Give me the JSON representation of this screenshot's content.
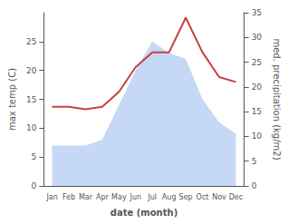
{
  "chart_data": {
    "type": "line",
    "xlabel": "date (month)",
    "ylabel": "max temp (C)",
    "y2label": "med. precipitation (kg/m2)",
    "categories": [
      "Jan",
      "Feb",
      "Mar",
      "Apr",
      "May",
      "Jun",
      "Jul",
      "Aug",
      "Sep",
      "Oct",
      "Nov",
      "Dec"
    ],
    "series": [
      {
        "type": "area",
        "color": "#c5d8f5",
        "values": [
          7,
          7,
          7,
          8,
          14,
          20,
          25,
          23,
          22,
          15,
          11,
          9
        ]
      },
      {
        "type": "line",
        "axis": "y2",
        "color": "#c9403a",
        "values": [
          16,
          16,
          15.5,
          16,
          19,
          24,
          27,
          27,
          34,
          27,
          22,
          21
        ]
      }
    ],
    "ylim": [
      0,
      30
    ],
    "yticks": [
      0,
      5,
      10,
      15,
      20,
      25
    ],
    "y2lim": [
      0,
      35
    ],
    "y2ticks": [
      0,
      5,
      10,
      15,
      20,
      25,
      30,
      35
    ],
    "grid": false
  }
}
